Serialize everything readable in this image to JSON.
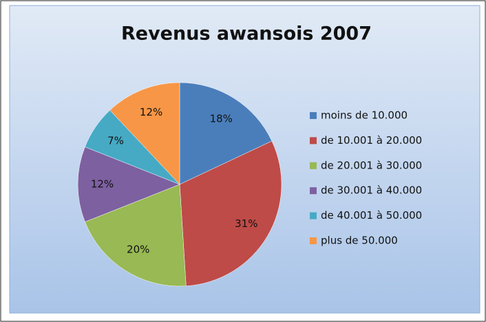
{
  "chart_data": {
    "type": "pie",
    "title": "Revenus awansois 2007",
    "categories": [
      "moins de 10.000",
      "de 10.001 à 20.000",
      "de 20.001 à 30.000",
      "de 30.001 à 40.000",
      "de 40.001 à 50.000",
      "plus de 50.000"
    ],
    "values": [
      18,
      31,
      20,
      12,
      7,
      12
    ],
    "value_labels": [
      "18%",
      "31%",
      "20%",
      "12%",
      "7%",
      "12%"
    ],
    "colors": [
      "#4a7ebb",
      "#be4b48",
      "#98b954",
      "#7d60a0",
      "#46aac5",
      "#f79646"
    ],
    "legend": "right"
  }
}
